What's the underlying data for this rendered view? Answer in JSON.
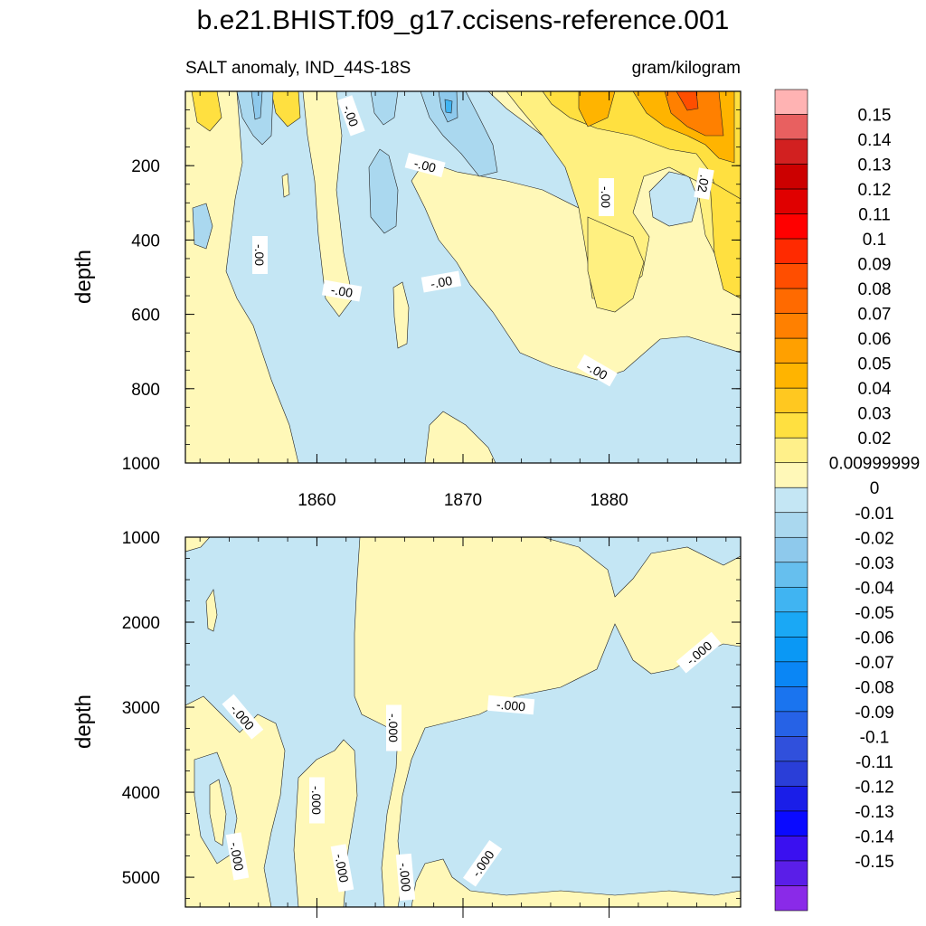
{
  "chart_data": {
    "type": "contour",
    "title": "b.e21.BHIST.f09_g17.ccisens-reference.001",
    "subtitle_left": "SALT anomaly, IND_44S-18S",
    "subtitle_right": "gram/kilogram",
    "xlabel": "",
    "x_ticks": [
      "1860",
      "1870",
      "1880"
    ],
    "xlim": [
      1851,
      1889
    ],
    "panels": [
      {
        "name": "upper",
        "ylabel": "depth",
        "ylim": [
          0,
          1000
        ],
        "y_ticks": [
          "200",
          "400",
          "600",
          "800",
          "1000"
        ],
        "contour_labels": [
          "-.00",
          "-.00",
          "-.00",
          "-.00",
          "-.00",
          "-.00",
          "-.00",
          ".02"
        ]
      },
      {
        "name": "lower",
        "ylabel": "depth",
        "ylim": [
          1000,
          5350
        ],
        "y_ticks": [
          "1000",
          "2000",
          "3000",
          "4000",
          "5000"
        ],
        "contour_labels": [
          "-.000",
          "-.000",
          "-.000",
          "-.000",
          "-.000",
          "-.000",
          "-.000",
          "-.000",
          "-.000"
        ]
      }
    ],
    "colorbar": {
      "labels": [
        "0.15",
        "0.14",
        "0.13",
        "0.12",
        "0.11",
        "0.1",
        "0.09",
        "0.08",
        "0.07",
        "0.06",
        "0.05",
        "0.04",
        "0.03",
        "0.02",
        "0.00999999",
        "0",
        "-0.01",
        "-0.02",
        "-0.03",
        "-0.04",
        "-0.05",
        "-0.06",
        "-0.07",
        "-0.08",
        "-0.09",
        "-0.1",
        "-0.11",
        "-0.12",
        "-0.13",
        "-0.14",
        "-0.15"
      ],
      "colors": [
        "#ffb3b3",
        "#e86060",
        "#d22020",
        "#cc0000",
        "#e00000",
        "#ff0000",
        "#ff2a00",
        "#ff4e00",
        "#ff6a00",
        "#ff8000",
        "#ffa000",
        "#ffb400",
        "#ffc820",
        "#ffe040",
        "#fff08a",
        "#fff8b8",
        "#c4e6f4",
        "#aad8ef",
        "#8ec9ec",
        "#66bfee",
        "#40b4f2",
        "#1aa8f5",
        "#0a98f5",
        "#0a86f5",
        "#1a74ef",
        "#2662e6",
        "#3050dc",
        "#2a3ed8",
        "#1a1ee8",
        "#0a0aff",
        "#3a10f0",
        "#5a1ee8",
        "#8a2ae8"
      ],
      "extra_swatches_note": "33 color bands, top band pink, bottom band purple"
    },
    "fill_colors": {
      "yellow_light": "#fff8b8",
      "yellow_mid": "#fff080",
      "yellow_deep": "#ffe040",
      "orange": "#ffb400",
      "orange_deep": "#ff8000",
      "red": "#ff4e00",
      "blue_light": "#c4e6f4",
      "blue_mid": "#aad8ef",
      "blue_deep": "#8ec9ec",
      "blue_strong": "#40b4f2"
    }
  }
}
